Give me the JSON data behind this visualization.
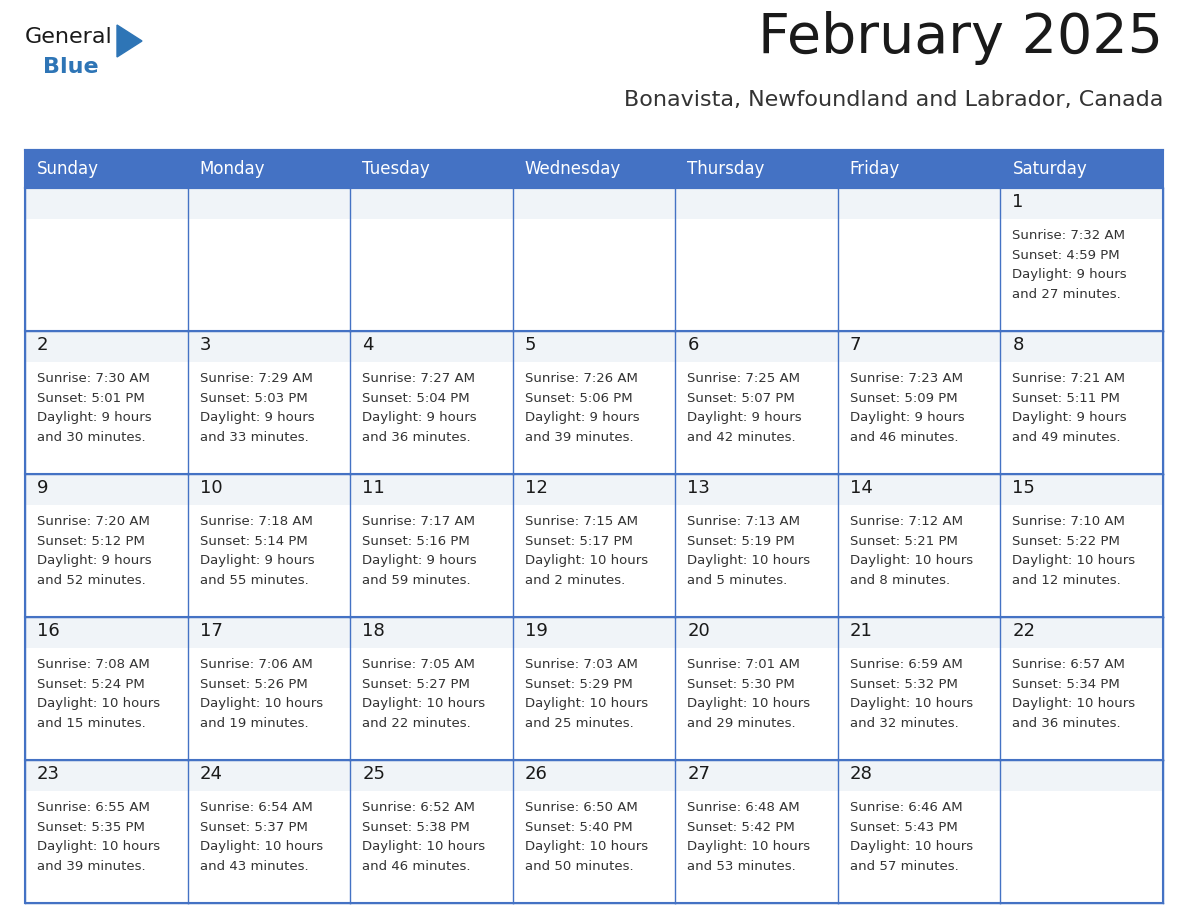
{
  "title": "February 2025",
  "subtitle": "Bonavista, Newfoundland and Labrador, Canada",
  "header_bg_color": "#4472c4",
  "header_text_color": "#ffffff",
  "cell_bg_color": "#ffffff",
  "cell_top_bg_color": "#f0f4f8",
  "grid_color": "#4472c4",
  "grid_color_light": "#4472c4",
  "title_color": "#1a1a1a",
  "subtitle_color": "#333333",
  "day_number_color": "#1a1a1a",
  "cell_text_color": "#333333",
  "days_of_week": [
    "Sunday",
    "Monday",
    "Tuesday",
    "Wednesday",
    "Thursday",
    "Friday",
    "Saturday"
  ],
  "weeks": [
    [
      {
        "day": null,
        "info": null
      },
      {
        "day": null,
        "info": null
      },
      {
        "day": null,
        "info": null
      },
      {
        "day": null,
        "info": null
      },
      {
        "day": null,
        "info": null
      },
      {
        "day": null,
        "info": null
      },
      {
        "day": 1,
        "info": "Sunrise: 7:32 AM\nSunset: 4:59 PM\nDaylight: 9 hours\nand 27 minutes."
      }
    ],
    [
      {
        "day": 2,
        "info": "Sunrise: 7:30 AM\nSunset: 5:01 PM\nDaylight: 9 hours\nand 30 minutes."
      },
      {
        "day": 3,
        "info": "Sunrise: 7:29 AM\nSunset: 5:03 PM\nDaylight: 9 hours\nand 33 minutes."
      },
      {
        "day": 4,
        "info": "Sunrise: 7:27 AM\nSunset: 5:04 PM\nDaylight: 9 hours\nand 36 minutes."
      },
      {
        "day": 5,
        "info": "Sunrise: 7:26 AM\nSunset: 5:06 PM\nDaylight: 9 hours\nand 39 minutes."
      },
      {
        "day": 6,
        "info": "Sunrise: 7:25 AM\nSunset: 5:07 PM\nDaylight: 9 hours\nand 42 minutes."
      },
      {
        "day": 7,
        "info": "Sunrise: 7:23 AM\nSunset: 5:09 PM\nDaylight: 9 hours\nand 46 minutes."
      },
      {
        "day": 8,
        "info": "Sunrise: 7:21 AM\nSunset: 5:11 PM\nDaylight: 9 hours\nand 49 minutes."
      }
    ],
    [
      {
        "day": 9,
        "info": "Sunrise: 7:20 AM\nSunset: 5:12 PM\nDaylight: 9 hours\nand 52 minutes."
      },
      {
        "day": 10,
        "info": "Sunrise: 7:18 AM\nSunset: 5:14 PM\nDaylight: 9 hours\nand 55 minutes."
      },
      {
        "day": 11,
        "info": "Sunrise: 7:17 AM\nSunset: 5:16 PM\nDaylight: 9 hours\nand 59 minutes."
      },
      {
        "day": 12,
        "info": "Sunrise: 7:15 AM\nSunset: 5:17 PM\nDaylight: 10 hours\nand 2 minutes."
      },
      {
        "day": 13,
        "info": "Sunrise: 7:13 AM\nSunset: 5:19 PM\nDaylight: 10 hours\nand 5 minutes."
      },
      {
        "day": 14,
        "info": "Sunrise: 7:12 AM\nSunset: 5:21 PM\nDaylight: 10 hours\nand 8 minutes."
      },
      {
        "day": 15,
        "info": "Sunrise: 7:10 AM\nSunset: 5:22 PM\nDaylight: 10 hours\nand 12 minutes."
      }
    ],
    [
      {
        "day": 16,
        "info": "Sunrise: 7:08 AM\nSunset: 5:24 PM\nDaylight: 10 hours\nand 15 minutes."
      },
      {
        "day": 17,
        "info": "Sunrise: 7:06 AM\nSunset: 5:26 PM\nDaylight: 10 hours\nand 19 minutes."
      },
      {
        "day": 18,
        "info": "Sunrise: 7:05 AM\nSunset: 5:27 PM\nDaylight: 10 hours\nand 22 minutes."
      },
      {
        "day": 19,
        "info": "Sunrise: 7:03 AM\nSunset: 5:29 PM\nDaylight: 10 hours\nand 25 minutes."
      },
      {
        "day": 20,
        "info": "Sunrise: 7:01 AM\nSunset: 5:30 PM\nDaylight: 10 hours\nand 29 minutes."
      },
      {
        "day": 21,
        "info": "Sunrise: 6:59 AM\nSunset: 5:32 PM\nDaylight: 10 hours\nand 32 minutes."
      },
      {
        "day": 22,
        "info": "Sunrise: 6:57 AM\nSunset: 5:34 PM\nDaylight: 10 hours\nand 36 minutes."
      }
    ],
    [
      {
        "day": 23,
        "info": "Sunrise: 6:55 AM\nSunset: 5:35 PM\nDaylight: 10 hours\nand 39 minutes."
      },
      {
        "day": 24,
        "info": "Sunrise: 6:54 AM\nSunset: 5:37 PM\nDaylight: 10 hours\nand 43 minutes."
      },
      {
        "day": 25,
        "info": "Sunrise: 6:52 AM\nSunset: 5:38 PM\nDaylight: 10 hours\nand 46 minutes."
      },
      {
        "day": 26,
        "info": "Sunrise: 6:50 AM\nSunset: 5:40 PM\nDaylight: 10 hours\nand 50 minutes."
      },
      {
        "day": 27,
        "info": "Sunrise: 6:48 AM\nSunset: 5:42 PM\nDaylight: 10 hours\nand 53 minutes."
      },
      {
        "day": 28,
        "info": "Sunrise: 6:46 AM\nSunset: 5:43 PM\nDaylight: 10 hours\nand 57 minutes."
      },
      {
        "day": null,
        "info": null
      }
    ]
  ],
  "logo_text_general": "General",
  "logo_text_blue": "Blue",
  "logo_triangle_color": "#2e75b6",
  "logo_general_color": "#1a1a1a",
  "logo_blue_color": "#2e75b6",
  "fig_width": 11.88,
  "fig_height": 9.18,
  "dpi": 100
}
